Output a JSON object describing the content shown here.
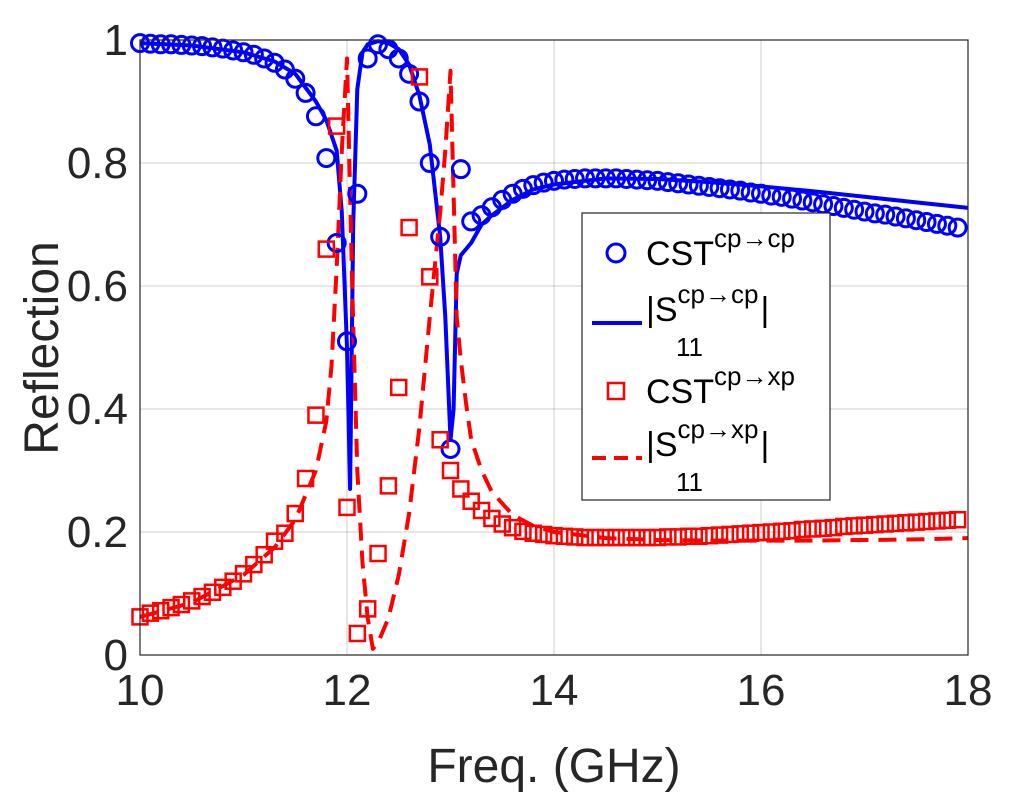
{
  "chart_data": {
    "type": "line",
    "xlabel": "Freq. (GHz)",
    "ylabel": "Reflection",
    "xlim": [
      10,
      18
    ],
    "ylim": [
      0,
      1
    ],
    "xticks": [
      "10",
      "12",
      "14",
      "16",
      "18"
    ],
    "yticks": [
      "0",
      "0.2",
      "0.4",
      "0.6",
      "0.8",
      "1"
    ],
    "grid": true,
    "legend_position": "center-right",
    "legend": [
      {
        "base": "CST",
        "sup": "cp→cp",
        "sub": "",
        "tail": ""
      },
      {
        "base": "|S",
        "sup": "cp→cp",
        "sub": "11",
        "tail": "|"
      },
      {
        "base": "CST",
        "sup": "cp→xp",
        "sub": "",
        "tail": ""
      },
      {
        "base": "|S",
        "sup": "cp→xp",
        "sub": "11",
        "tail": "|"
      }
    ],
    "series": [
      {
        "color": "#0000ff",
        "style": "markers-circle",
        "x": [
          10.0,
          10.1,
          10.2,
          10.3,
          10.4,
          10.5,
          10.6,
          10.7,
          10.8,
          10.9,
          11.0,
          11.1,
          11.2,
          11.3,
          11.4,
          11.5,
          11.6,
          11.7,
          11.8,
          11.9,
          12.0,
          12.1,
          12.2,
          12.3,
          12.4,
          12.5,
          12.6,
          12.7,
          12.8,
          12.9,
          13.0,
          13.1,
          13.2,
          13.3,
          13.4,
          13.5,
          13.6,
          13.7,
          13.8,
          13.9,
          14.0,
          14.1,
          14.2,
          14.3,
          14.4,
          14.5,
          14.6,
          14.7,
          14.8,
          14.9,
          15.0,
          15.1,
          15.2,
          15.3,
          15.4,
          15.5,
          15.6,
          15.7,
          15.8,
          15.9,
          16.0,
          16.1,
          16.2,
          16.3,
          16.4,
          16.5,
          16.6,
          16.7,
          16.8,
          16.9,
          17.0,
          17.1,
          17.2,
          17.3,
          17.4,
          17.5,
          17.6,
          17.7,
          17.8,
          17.9
        ],
        "y": [
          0.995,
          0.994,
          0.993,
          0.993,
          0.992,
          0.991,
          0.99,
          0.988,
          0.986,
          0.983,
          0.98,
          0.976,
          0.97,
          0.963,
          0.952,
          0.937,
          0.914,
          0.876,
          0.808,
          0.67,
          0.51,
          0.75,
          0.97,
          0.993,
          0.985,
          0.97,
          0.945,
          0.9,
          0.8,
          0.68,
          0.335,
          0.79,
          0.705,
          0.715,
          0.728,
          0.74,
          0.75,
          0.758,
          0.764,
          0.768,
          0.771,
          0.773,
          0.774,
          0.775,
          0.775,
          0.775,
          0.775,
          0.774,
          0.773,
          0.772,
          0.771,
          0.769,
          0.767,
          0.765,
          0.763,
          0.761,
          0.759,
          0.757,
          0.755,
          0.752,
          0.75,
          0.747,
          0.745,
          0.742,
          0.739,
          0.736,
          0.733,
          0.73,
          0.727,
          0.724,
          0.721,
          0.718,
          0.716,
          0.713,
          0.71,
          0.707,
          0.704,
          0.701,
          0.698,
          0.695
        ]
      },
      {
        "color": "#0000ff",
        "style": "solid",
        "x": [
          10.0,
          10.5,
          11.0,
          11.3,
          11.5,
          11.7,
          11.8,
          11.9,
          11.95,
          12.0,
          12.03,
          12.06,
          12.1,
          12.15,
          12.2,
          12.3,
          12.4,
          12.5,
          12.6,
          12.7,
          12.8,
          12.9,
          12.95,
          13.0,
          13.03,
          13.06,
          13.1,
          13.15,
          13.2,
          13.3,
          13.4,
          13.6,
          13.8,
          14.0,
          14.5,
          15.0,
          15.5,
          16.0,
          16.5,
          17.0,
          17.5,
          18.0
        ],
        "y": [
          0.995,
          0.991,
          0.98,
          0.965,
          0.945,
          0.9,
          0.87,
          0.82,
          0.72,
          0.5,
          0.27,
          0.7,
          0.92,
          0.98,
          0.993,
          0.998,
          0.995,
          0.985,
          0.96,
          0.91,
          0.83,
          0.68,
          0.55,
          0.35,
          0.4,
          0.62,
          0.65,
          0.66,
          0.67,
          0.7,
          0.715,
          0.74,
          0.757,
          0.765,
          0.775,
          0.774,
          0.769,
          0.762,
          0.754,
          0.745,
          0.736,
          0.727
        ]
      },
      {
        "color": "#ff0000",
        "style": "markers-square",
        "x": [
          10.0,
          10.1,
          10.2,
          10.3,
          10.4,
          10.5,
          10.6,
          10.7,
          10.8,
          10.9,
          11.0,
          11.1,
          11.2,
          11.3,
          11.4,
          11.5,
          11.6,
          11.7,
          11.8,
          11.9,
          12.0,
          12.1,
          12.2,
          12.3,
          12.4,
          12.5,
          12.6,
          12.7,
          12.8,
          12.9,
          13.0,
          13.1,
          13.2,
          13.3,
          13.4,
          13.5,
          13.6,
          13.7,
          13.8,
          13.9,
          14.0,
          14.1,
          14.2,
          14.3,
          14.4,
          14.5,
          14.6,
          14.7,
          14.8,
          14.9,
          15.0,
          15.1,
          15.2,
          15.3,
          15.4,
          15.5,
          15.6,
          15.7,
          15.8,
          15.9,
          16.0,
          16.1,
          16.2,
          16.3,
          16.4,
          16.5,
          16.6,
          16.7,
          16.8,
          16.9,
          17.0,
          17.1,
          17.2,
          17.3,
          17.4,
          17.5,
          17.6,
          17.7,
          17.8,
          17.9
        ],
        "y": [
          0.062,
          0.068,
          0.072,
          0.077,
          0.082,
          0.088,
          0.095,
          0.102,
          0.11,
          0.12,
          0.132,
          0.147,
          0.163,
          0.185,
          0.198,
          0.23,
          0.287,
          0.39,
          0.66,
          0.86,
          0.24,
          0.035,
          0.075,
          0.165,
          0.275,
          0.435,
          0.695,
          0.94,
          0.615,
          0.35,
          0.3,
          0.27,
          0.25,
          0.235,
          0.222,
          0.213,
          0.207,
          0.201,
          0.198,
          0.196,
          0.194,
          0.193,
          0.192,
          0.191,
          0.191,
          0.191,
          0.191,
          0.191,
          0.191,
          0.191,
          0.191,
          0.192,
          0.192,
          0.193,
          0.193,
          0.194,
          0.195,
          0.196,
          0.197,
          0.198,
          0.199,
          0.2,
          0.201,
          0.202,
          0.204,
          0.205,
          0.206,
          0.207,
          0.209,
          0.21,
          0.211,
          0.212,
          0.213,
          0.214,
          0.215,
          0.216,
          0.217,
          0.218,
          0.219,
          0.22
        ]
      },
      {
        "color": "#ff0000",
        "style": "dashed",
        "x": [
          10.0,
          10.5,
          11.0,
          11.3,
          11.5,
          11.7,
          11.8,
          11.85,
          11.9,
          11.95,
          12.0,
          12.05,
          12.1,
          12.15,
          12.2,
          12.25,
          12.3,
          12.4,
          12.5,
          12.6,
          12.7,
          12.8,
          12.9,
          12.95,
          13.0,
          13.03,
          13.06,
          13.1,
          13.15,
          13.2,
          13.3,
          13.4,
          13.6,
          13.8,
          14.0,
          14.5,
          15.0,
          15.5,
          16.0,
          16.5,
          17.0,
          17.5,
          18.0
        ],
        "y": [
          0.062,
          0.085,
          0.13,
          0.175,
          0.22,
          0.3,
          0.38,
          0.47,
          0.63,
          0.82,
          0.97,
          0.6,
          0.3,
          0.15,
          0.06,
          0.01,
          0.02,
          0.06,
          0.13,
          0.23,
          0.37,
          0.55,
          0.72,
          0.82,
          0.95,
          0.75,
          0.55,
          0.48,
          0.41,
          0.35,
          0.3,
          0.265,
          0.228,
          0.21,
          0.2,
          0.19,
          0.187,
          0.186,
          0.186,
          0.186,
          0.187,
          0.188,
          0.19
        ]
      }
    ]
  }
}
